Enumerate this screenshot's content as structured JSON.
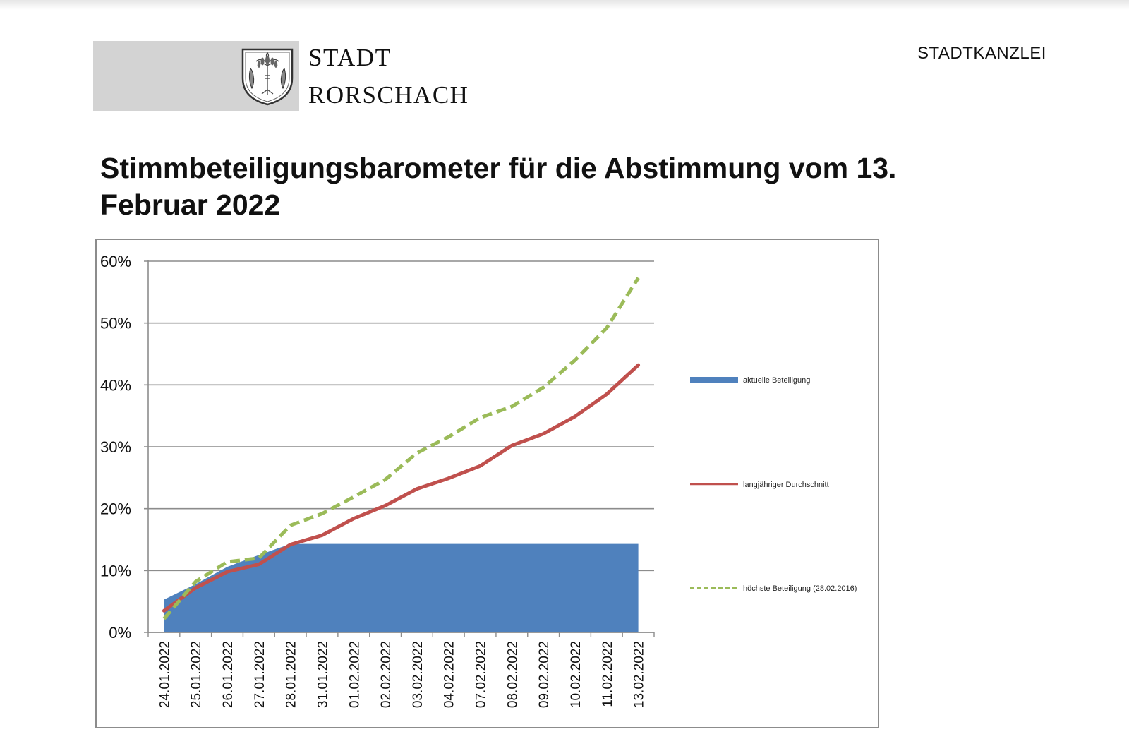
{
  "header": {
    "logo_line1": "STADT",
    "logo_line2": "RORSCHACH",
    "office": "STADTKANZLEI",
    "crest_icon": "coat-of-arms-wheat-fish-icon"
  },
  "page_title": "Stimmbeteiligungsbarometer für die Abstimmung vom 13. Februar 2022",
  "colors": {
    "logo_box": "#d3d3d3",
    "area": "#4f81bd",
    "average": "#c0504d",
    "highest": "#9bbb59",
    "grid": "#8c8c8c"
  },
  "chart_data": {
    "type": "line",
    "title": "",
    "xlabel": "",
    "ylabel": "",
    "ylim": [
      0,
      60
    ],
    "yticks": [
      "0%",
      "10%",
      "20%",
      "30%",
      "40%",
      "50%",
      "60%"
    ],
    "grid": true,
    "legend_position": "right",
    "categories": [
      "24.01.2022",
      "25.01.2022",
      "26.01.2022",
      "27.01.2022",
      "28.01.2022",
      "31.01.2022",
      "01.02.2022",
      "02.02.2022",
      "03.02.2022",
      "04.02.2022",
      "07.02.2022",
      "08.02.2022",
      "09.02.2022",
      "10.02.2022",
      "11.02.2022",
      "13.02.2022"
    ],
    "series": [
      {
        "name": "aktuelle Beteiligung",
        "style": "area",
        "values": [
          5.3,
          7.8,
          10.6,
          12.5,
          14.3,
          14.3,
          14.3,
          14.3,
          14.3,
          14.3,
          14.3,
          14.3,
          14.3,
          14.3,
          14.3,
          14.3
        ]
      },
      {
        "name": "langjähriger Durchschnitt",
        "style": "line",
        "values": [
          3.5,
          7.2,
          9.8,
          11.0,
          14.2,
          15.7,
          18.4,
          20.5,
          23.2,
          24.9,
          26.9,
          30.2,
          32.1,
          34.9,
          38.5,
          43.2
        ]
      },
      {
        "name": "höchste Beteiligung (28.02.2016)",
        "style": "dashed",
        "values": [
          2.2,
          8.2,
          11.4,
          12.0,
          17.3,
          19.2,
          21.9,
          24.7,
          29.0,
          31.6,
          34.7,
          36.5,
          39.6,
          44.0,
          49.2,
          57.3
        ]
      }
    ]
  }
}
